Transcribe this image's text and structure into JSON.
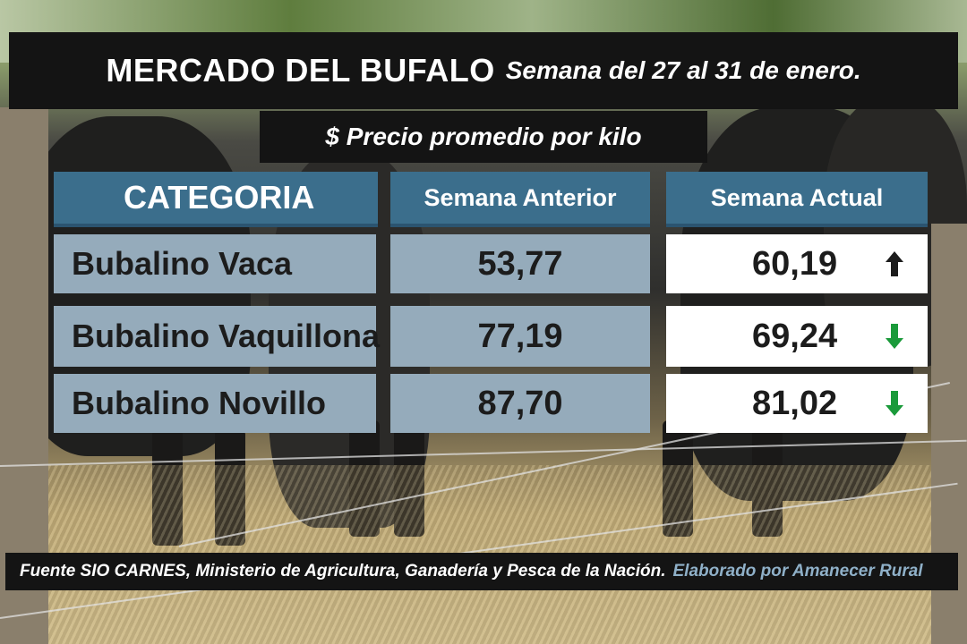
{
  "header": {
    "title": "MERCADO DEL BUFALO",
    "subtitle": "Semana del 27 al 31 de enero.",
    "unit_label": "$ Precio promedio por kilo"
  },
  "table": {
    "columns": [
      "CATEGORIA",
      "Semana Anterior",
      "Semana Actual"
    ],
    "rows": [
      {
        "category": "Bubalino Vaca",
        "previous": "53,77",
        "current": "60,19",
        "trend": "up",
        "trend_icon": "arrow-up-icon"
      },
      {
        "category": "Bubalino Vaquillona",
        "previous": "77,19",
        "current": "69,24",
        "trend": "down",
        "trend_icon": "arrow-down-icon"
      },
      {
        "category": "Bubalino Novillo",
        "previous": "87,70",
        "current": "81,02",
        "trend": "down",
        "trend_icon": "arrow-down-icon"
      }
    ]
  },
  "footer": {
    "source": "Fuente SIO CARNES,  Ministerio de Agricultura, Ganadería y Pesca de la Nación.",
    "credit": "Elaborado por  Amanecer Rural"
  },
  "colors": {
    "header_blue": "#3b6e8c",
    "row_blue_gray": "#95abbb",
    "up_arrow": "#1c1c1c",
    "down_arrow": "#1a9a3a",
    "credit_text": "#8fb0c8"
  }
}
